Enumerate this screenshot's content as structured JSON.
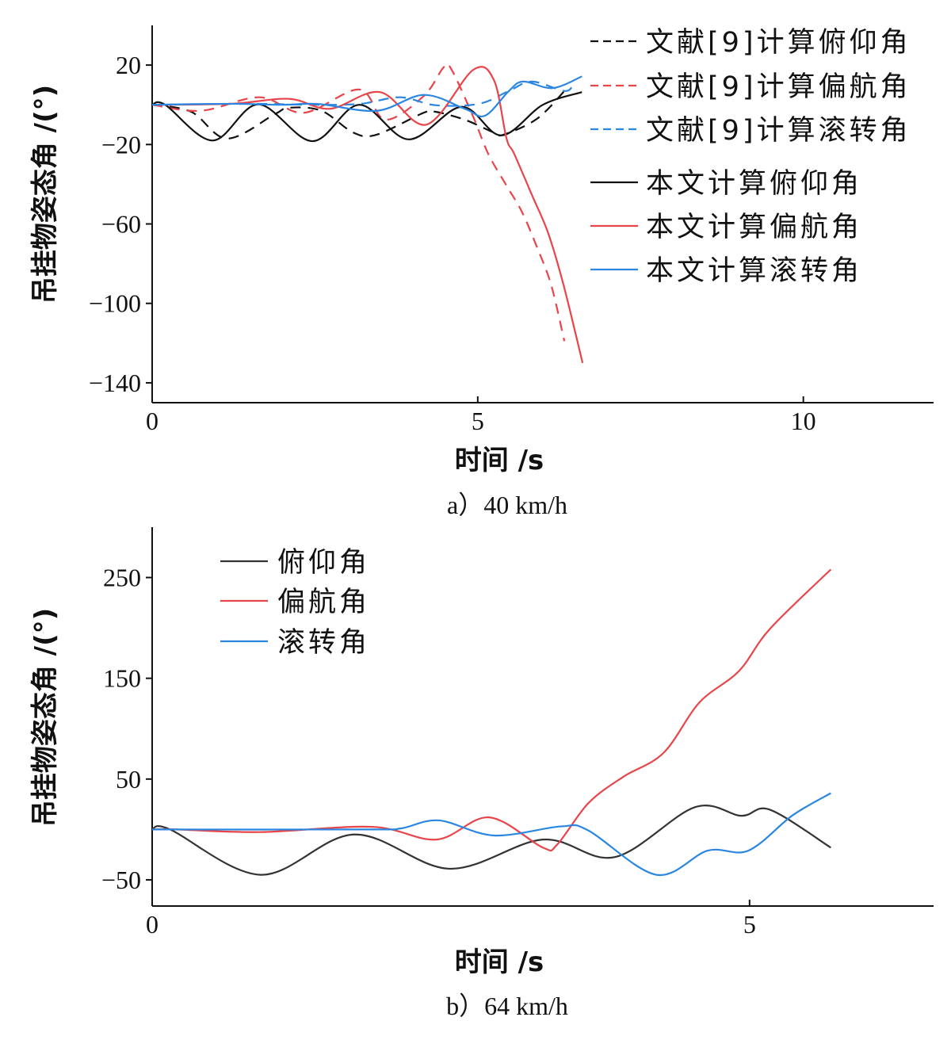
{
  "chart_data": [
    {
      "type": "line",
      "id": "a",
      "caption": "a）40 km/h",
      "xlabel": "时间 /s",
      "ylabel": "吊挂物姿态角 /(°)",
      "xlim": [
        0,
        12
      ],
      "ylim": [
        -150,
        40
      ],
      "xticks": [
        0,
        5,
        10
      ],
      "yticks": [
        20,
        -20,
        -60,
        -100,
        -140
      ],
      "grid": false,
      "legend_position": "top-right",
      "series": [
        {
          "name": "文献[9]计算俯仰角",
          "color": "#111111",
          "dash": true,
          "x": [
            0,
            0.6,
            1.15,
            1.88,
            2.1,
            2.6,
            3.09,
            3.45,
            4.17,
            4.35,
            4.8,
            5.25,
            5.4,
            5.92,
            6.37
          ],
          "y": [
            0,
            -3.5,
            -17,
            -4.8,
            -1.5,
            -3,
            -14,
            -15,
            -4,
            -3.5,
            -7.5,
            -14,
            -15,
            -6.8,
            8.4
          ]
        },
        {
          "name": "文献[9]计算偏航角",
          "color": "#e8454a",
          "dash": true,
          "x": [
            0,
            0.75,
            1.65,
            2.33,
            3.18,
            3.58,
            4.17,
            4.48,
            4.6,
            4.93,
            5.16,
            5.44,
            5.68,
            5.92,
            6.13,
            6.33
          ],
          "y": [
            0,
            -3,
            3.8,
            -4,
            7.7,
            -7.5,
            4.4,
            19,
            17.6,
            -6,
            -24.6,
            -40.6,
            -54,
            -72.5,
            -91,
            -119
          ]
        },
        {
          "name": "文献[9]计算滚转角",
          "color": "#2a86e0",
          "dash": true,
          "x": [
            0,
            1.5,
            2.5,
            3.2,
            3.81,
            4.35,
            5.02,
            5.48,
            5.83,
            6.32,
            6.45
          ],
          "y": [
            0,
            0.5,
            0,
            0.5,
            3.8,
            -0.2,
            0.5,
            7,
            11.7,
            7,
            9
          ]
        },
        {
          "name": "本文计算俯仰角",
          "color": "#111111",
          "dash": false,
          "x": [
            0,
            0.2,
            0.93,
            1.63,
            2.46,
            3.18,
            3.94,
            4.75,
            5.36,
            6.0,
            6.6
          ],
          "y": [
            0,
            0,
            -18,
            0.2,
            -18.3,
            0,
            -17.4,
            -1,
            -15.4,
            0,
            6.4
          ]
        },
        {
          "name": "本文计算偏航角",
          "color": "#e8454a",
          "dash": false,
          "x": [
            0,
            1.2,
            2.1,
            2.73,
            3.5,
            4.21,
            4.93,
            5.25,
            5.44,
            5.56,
            5.84,
            6.08,
            6.32,
            6.61
          ],
          "y": [
            0,
            0.5,
            3,
            -2,
            6.4,
            -10,
            17.6,
            12.3,
            -16.7,
            -24.7,
            -46,
            -64.5,
            -91,
            -130
          ]
        },
        {
          "name": "本文计算滚转角",
          "color": "#2a86e0",
          "dash": false,
          "x": [
            0,
            1.2,
            2.0,
            2.55,
            3.45,
            4.17,
            4.8,
            5.11,
            5.48,
            5.7,
            6.15,
            6.6
          ],
          "y": [
            0,
            0.5,
            0,
            0.4,
            -3,
            5,
            -2,
            -5.5,
            7,
            11.7,
            8.4,
            14.3
          ]
        }
      ]
    },
    {
      "type": "line",
      "id": "b",
      "caption": "b）64 km/h",
      "xlabel": "时间 /s",
      "ylabel": "吊挂物姿态角 /(°)",
      "xlim": [
        0,
        6.54
      ],
      "ylim": [
        -76,
        300
      ],
      "xticks": [
        0,
        5
      ],
      "yticks": [
        250,
        150,
        50,
        -50
      ],
      "grid": false,
      "legend_position": "top-left",
      "series": [
        {
          "name": "俯仰角",
          "color": "#333333",
          "dash": false,
          "x": [
            0,
            0.15,
            0.91,
            1.69,
            2.49,
            3.27,
            3.87,
            4.54,
            4.93,
            5.17,
            5.68
          ],
          "y": [
            0,
            0,
            -45,
            -5,
            -39,
            -10,
            -27.5,
            22,
            13.6,
            19.6,
            -18
          ]
        },
        {
          "name": "偏航角",
          "color": "#e8454a",
          "dash": false,
          "x": [
            0,
            0.2,
            0.9,
            1.84,
            2.38,
            2.82,
            3.27,
            3.39,
            3.65,
            3.94,
            4.28,
            4.58,
            4.91,
            5.17,
            5.68
          ],
          "y": [
            0,
            0,
            -2.6,
            2.6,
            -10,
            12,
            -18,
            -15,
            26,
            52,
            76,
            126,
            157,
            199,
            258
          ]
        },
        {
          "name": "滚转角",
          "color": "#2a86e0",
          "dash": false,
          "x": [
            0,
            1.8,
            2.08,
            2.4,
            2.86,
            3.42,
            3.65,
            4.22,
            4.65,
            4.99,
            5.36,
            5.68
          ],
          "y": [
            0,
            0,
            1,
            9,
            -6,
            3,
            -1,
            -45,
            -21,
            -21,
            14,
            36
          ]
        }
      ]
    }
  ]
}
